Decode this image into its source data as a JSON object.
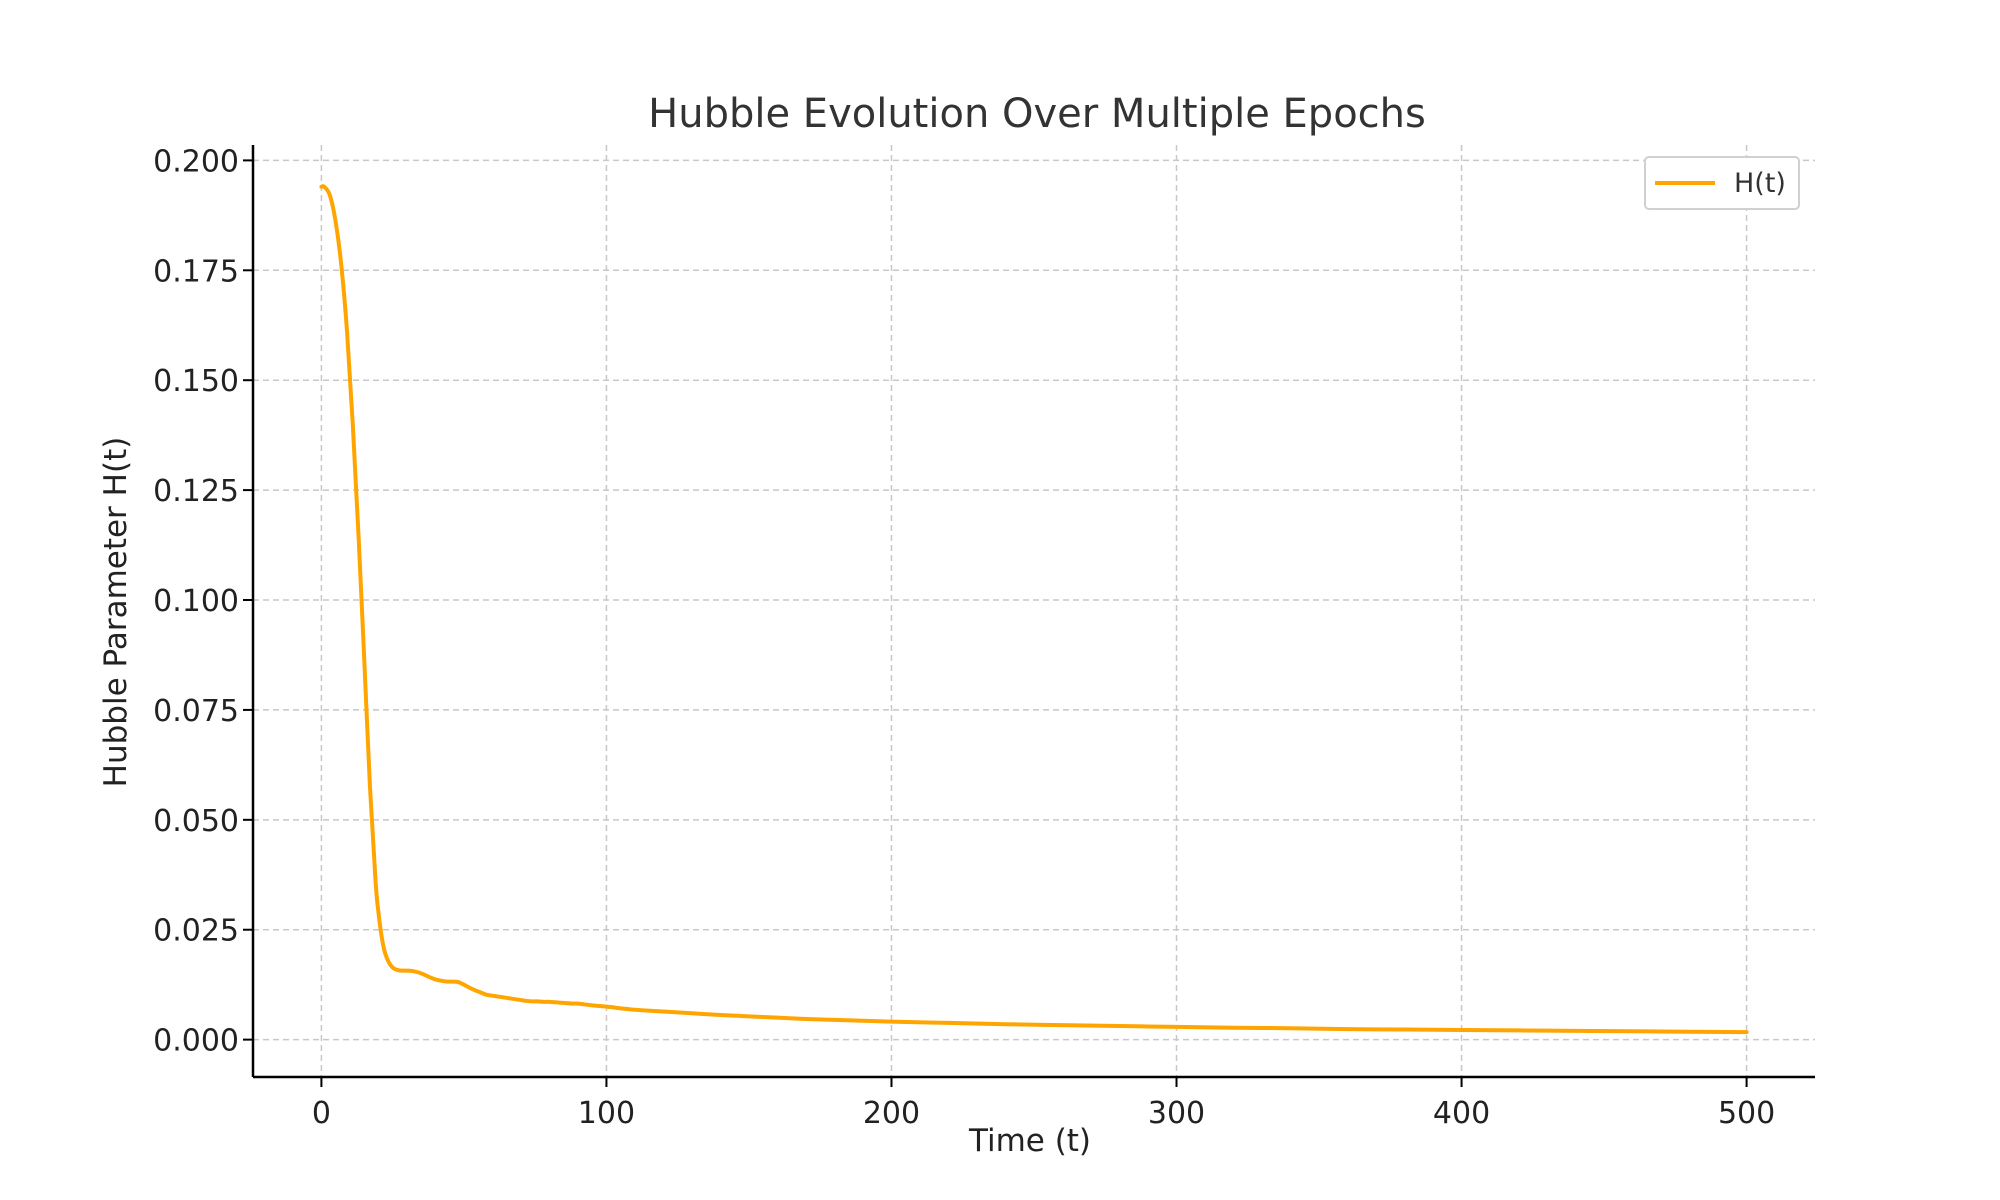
{
  "chart_data": {
    "type": "line",
    "title": "Hubble Evolution Over Multiple Epochs",
    "xlabel": "Time (t)",
    "ylabel": "Hubble Parameter H(t)",
    "xlim": [
      -24,
      524
    ],
    "ylim": [
      -0.0085,
      0.2035
    ],
    "x_ticks": [
      0,
      100,
      200,
      300,
      400,
      500
    ],
    "x_tick_labels": [
      "0",
      "100",
      "200",
      "300",
      "400",
      "500"
    ],
    "y_ticks": [
      0.0,
      0.025,
      0.05,
      0.075,
      0.1,
      0.125,
      0.15,
      0.175,
      0.2
    ],
    "y_tick_labels": [
      "0.000",
      "0.025",
      "0.050",
      "0.075",
      "0.100",
      "0.125",
      "0.150",
      "0.175",
      "0.200"
    ],
    "grid": true,
    "legend_position": "top-right",
    "colors": {
      "line": "#ffa500",
      "grid": "#c8c8c8",
      "axis": "#000000"
    },
    "series": [
      {
        "name": "H(t)",
        "x": [
          0,
          1,
          3,
          5,
          7,
          9,
          11,
          13,
          15,
          17,
          19,
          20,
          21,
          22,
          23,
          24,
          25,
          26,
          27,
          28,
          30,
          32,
          34,
          36,
          38,
          40,
          42,
          44,
          46,
          48,
          50,
          52,
          54,
          56,
          58,
          60,
          62,
          64,
          66,
          68,
          70,
          72,
          74,
          76,
          78,
          80,
          82,
          84,
          86,
          88,
          90,
          95,
          100,
          110,
          120,
          130,
          140,
          150,
          160,
          170,
          180,
          190,
          200,
          220,
          240,
          260,
          280,
          300,
          320,
          340,
          360,
          380,
          400,
          420,
          440,
          460,
          480,
          500
        ],
        "y": [
          0.194,
          0.194,
          0.192,
          0.186,
          0.176,
          0.161,
          0.14,
          0.115,
          0.087,
          0.058,
          0.036,
          0.029,
          0.024,
          0.0205,
          0.0185,
          0.0172,
          0.0164,
          0.016,
          0.0158,
          0.0157,
          0.0157,
          0.0156,
          0.0153,
          0.0148,
          0.0142,
          0.0137,
          0.0134,
          0.0132,
          0.0132,
          0.0131,
          0.0125,
          0.0118,
          0.0112,
          0.0107,
          0.0102,
          0.01,
          0.0098,
          0.0096,
          0.0094,
          0.0092,
          0.009,
          0.0088,
          0.0087,
          0.0087,
          0.0086,
          0.0086,
          0.0085,
          0.0084,
          0.0083,
          0.0082,
          0.0082,
          0.0078,
          0.0075,
          0.0068,
          0.0064,
          0.006,
          0.0056,
          0.0053,
          0.005,
          0.0047,
          0.0045,
          0.0043,
          0.0041,
          0.0038,
          0.0035,
          0.0033,
          0.0031,
          0.0029,
          0.0027,
          0.0026,
          0.0024,
          0.0023,
          0.0022,
          0.0021,
          0.002,
          0.0019,
          0.0018,
          0.0017
        ]
      }
    ]
  }
}
